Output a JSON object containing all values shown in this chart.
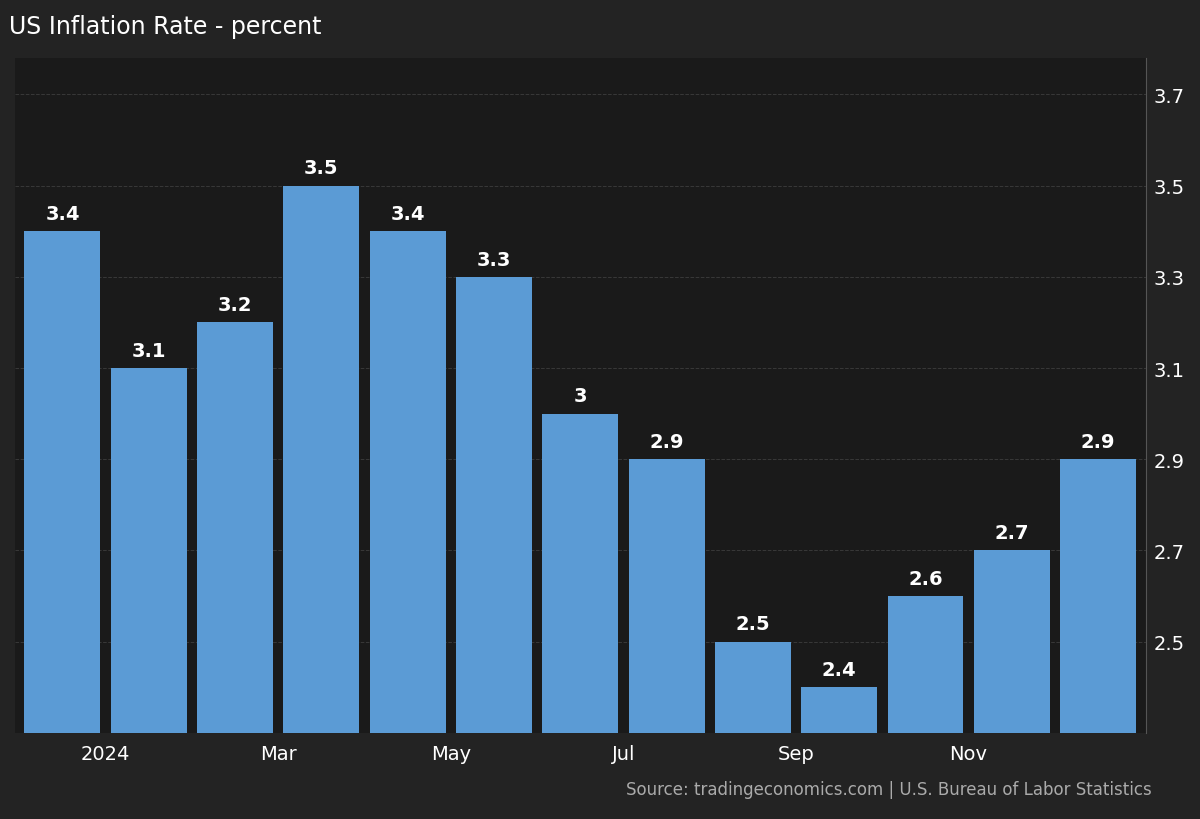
{
  "title": "US Inflation Rate - percent",
  "source_text": "Source: tradingeconomics.com | U.S. Bureau of Labor Statistics",
  "values": [
    3.4,
    3.1,
    3.2,
    3.5,
    3.4,
    3.3,
    3.0,
    2.9,
    2.5,
    2.4,
    2.6,
    2.7,
    2.9
  ],
  "bar_labels": [
    "3.4",
    "3.1",
    "3.2",
    "3.5",
    "3.4",
    "3.3",
    "3",
    "2.9",
    "2.5",
    "2.4",
    "2.6",
    "2.7",
    "2.9"
  ],
  "x_tick_positions": [
    1.0,
    3.0,
    5.0,
    7.0,
    9.0,
    11.0
  ],
  "x_tick_labels": [
    "2024",
    "Mar",
    "May",
    "Jul",
    "Sep",
    "Nov"
  ],
  "bar_color": "#5B9BD5",
  "background_color": "#232323",
  "plot_bg_color": "#1a1a1a",
  "text_color": "#ffffff",
  "grid_color": "#404040",
  "ylim_min": 2.3,
  "ylim_max": 3.78,
  "yticks": [
    2.5,
    2.7,
    2.9,
    3.1,
    3.3,
    3.5,
    3.7
  ],
  "title_fontsize": 17,
  "tick_fontsize": 14,
  "source_fontsize": 12,
  "bar_label_fontsize": 14
}
